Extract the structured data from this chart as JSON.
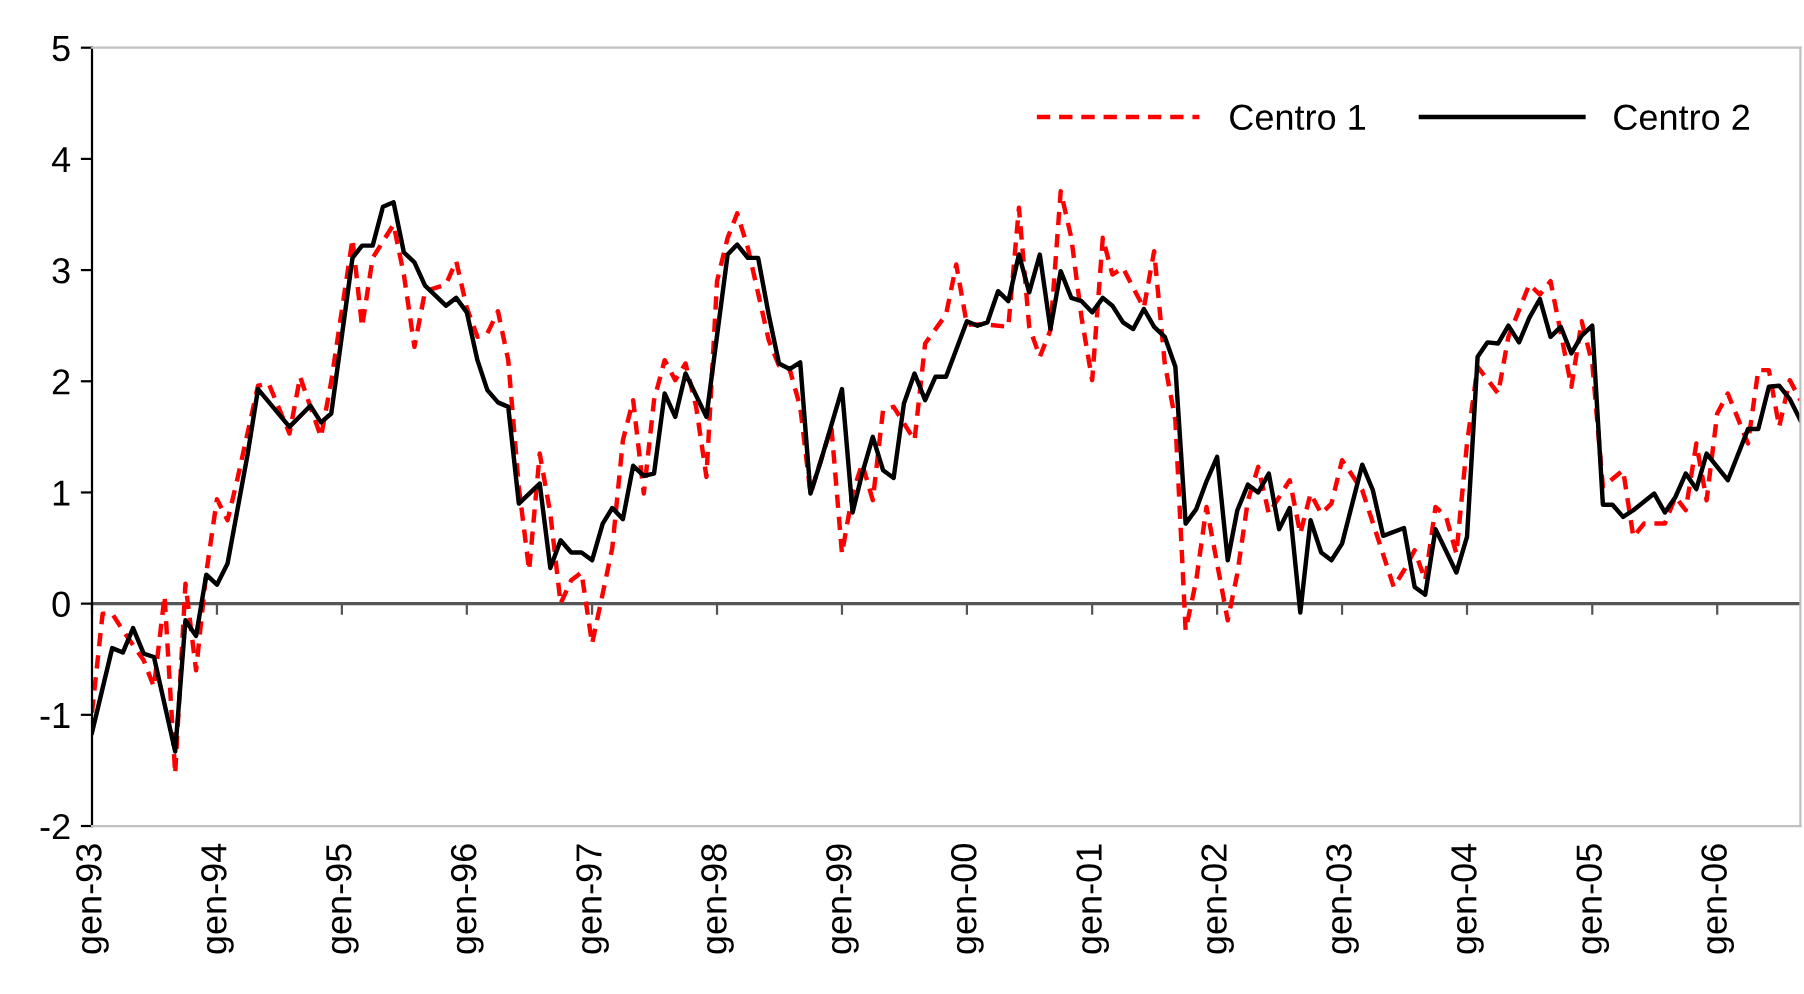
{
  "chart_data": {
    "type": "line",
    "xlim": [
      "1993-01",
      "2006-09"
    ],
    "xticks": [
      {
        "value": "1993-01",
        "label": "gen-93"
      },
      {
        "value": "1994-01",
        "label": "gen-94"
      },
      {
        "value": "1995-01",
        "label": "gen-95"
      },
      {
        "value": "1996-01",
        "label": "gen-96"
      },
      {
        "value": "1997-01",
        "label": "gen-97"
      },
      {
        "value": "1998-01",
        "label": "gen-98"
      },
      {
        "value": "1999-01",
        "label": "gen-99"
      },
      {
        "value": "2000-01",
        "label": "gen-00"
      },
      {
        "value": "2001-01",
        "label": "gen-01"
      },
      {
        "value": "2002-01",
        "label": "gen-02"
      },
      {
        "value": "2003-01",
        "label": "gen-03"
      },
      {
        "value": "2004-01",
        "label": "gen-04"
      },
      {
        "value": "2005-01",
        "label": "gen-05"
      },
      {
        "value": "2006-01",
        "label": "gen-06"
      }
    ],
    "ylim": [
      -2,
      5
    ],
    "yticks": [
      -2,
      -1,
      0,
      1,
      2,
      3,
      4,
      5
    ],
    "ref_lines": [
      {
        "axis": "y",
        "value": 0,
        "color": "#555555"
      }
    ],
    "legend": "top right",
    "marker": "none",
    "series": [
      {
        "name": "Centro 1",
        "color": "#ff0000",
        "line_style": "dashed",
        "x": [
          "1993-01",
          "1993-02",
          "1993-03",
          "1993-04",
          "1993-06",
          "1993-07",
          "1993-08",
          "1993-09",
          "1993-10",
          "1993-11",
          "1993-12",
          "1994-01",
          "1994-02",
          "1994-03",
          "1994-05",
          "1994-06",
          "1994-08",
          "1994-09",
          "1994-10",
          "1994-11",
          "1994-12",
          "1995-02",
          "1995-03",
          "1995-04",
          "1995-06",
          "1995-07",
          "1995-08",
          "1995-09",
          "1995-11",
          "1995-12",
          "1996-01",
          "1996-02",
          "1996-03",
          "1996-04",
          "1996-05",
          "1996-06",
          "1996-07",
          "1996-08",
          "1996-09",
          "1996-10",
          "1996-11",
          "1996-12",
          "1997-01",
          "1997-02",
          "1997-03",
          "1997-04",
          "1997-05",
          "1997-06",
          "1997-07",
          "1997-08",
          "1997-09",
          "1997-10",
          "1997-11",
          "1997-12",
          "1998-01",
          "1998-02",
          "1998-03",
          "1998-04",
          "1998-06",
          "1998-07",
          "1998-08",
          "1998-09",
          "1998-10",
          "1998-12",
          "1999-01",
          "1999-02",
          "1999-03",
          "1999-04",
          "1999-05",
          "1999-06",
          "1999-08",
          "1999-09",
          "1999-11",
          "1999-12",
          "2000-01",
          "2000-03",
          "2000-05",
          "2000-06",
          "2000-07",
          "2000-08",
          "2000-09",
          "2000-10",
          "2000-11",
          "2000-12",
          "2001-01",
          "2001-02",
          "2001-03",
          "2001-04",
          "2001-05",
          "2001-06",
          "2001-07",
          "2001-08",
          "2001-09",
          "2001-10",
          "2001-11",
          "2001-12",
          "2002-02",
          "2002-03",
          "2002-04",
          "2002-05",
          "2002-06",
          "2002-08",
          "2002-09",
          "2002-10",
          "2002-11",
          "2002-12",
          "2003-01",
          "2003-03",
          "2003-06",
          "2003-07",
          "2003-08",
          "2003-09",
          "2003-10",
          "2003-11",
          "2003-12",
          "2004-01",
          "2004-02",
          "2004-04",
          "2004-05",
          "2004-07",
          "2004-08",
          "2004-09",
          "2004-11",
          "2004-12",
          "2005-01",
          "2005-02",
          "2005-04",
          "2005-05",
          "2005-06",
          "2005-08",
          "2005-09",
          "2005-10",
          "2005-11",
          "2005-12",
          "2006-01",
          "2006-02",
          "2006-04",
          "2006-05",
          "2006-06",
          "2006-07",
          "2006-08",
          "2006-09"
        ],
        "values": [
          -0.98,
          -0.09,
          -0.09,
          -0.24,
          -0.51,
          -0.75,
          0.07,
          -1.53,
          0.18,
          -0.6,
          0.28,
          0.94,
          0.75,
          1.11,
          1.96,
          1.98,
          1.53,
          2.04,
          1.77,
          1.5,
          2.0,
          3.28,
          2.49,
          3.11,
          3.41,
          2.96,
          2.31,
          2.81,
          2.87,
          3.08,
          2.66,
          2.4,
          2.43,
          2.63,
          2.19,
          1.05,
          0.3,
          1.35,
          0.81,
          0.0,
          0.21,
          0.28,
          -0.36,
          0.09,
          0.5,
          1.47,
          1.83,
          0.99,
          1.83,
          2.19,
          2.01,
          2.16,
          1.77,
          1.14,
          2.9,
          3.29,
          3.51,
          3.2,
          2.37,
          2.14,
          2.11,
          1.77,
          0.99,
          1.59,
          0.45,
          0.99,
          1.26,
          0.93,
          1.74,
          1.77,
          1.47,
          2.34,
          2.6,
          3.05,
          2.51,
          2.51,
          2.49,
          3.56,
          2.49,
          2.22,
          2.46,
          3.71,
          3.29,
          2.57,
          2.01,
          3.29,
          2.96,
          3.02,
          2.84,
          2.66,
          3.17,
          2.16,
          1.65,
          -0.24,
          0.21,
          0.87,
          -0.15,
          0.27,
          0.93,
          1.23,
          0.81,
          1.11,
          0.63,
          0.99,
          0.81,
          0.9,
          1.29,
          1.02,
          0.15,
          0.3,
          0.48,
          0.21,
          0.87,
          0.78,
          0.45,
          1.44,
          2.13,
          1.89,
          2.4,
          2.87,
          2.78,
          2.9,
          1.95,
          2.54,
          2.16,
          1.05,
          1.2,
          0.6,
          0.72,
          0.72,
          0.96,
          0.84,
          1.44,
          0.93,
          1.71,
          1.89,
          1.44,
          2.1,
          2.1,
          1.59,
          2.01,
          1.83
        ]
      },
      {
        "name": "Centro 2",
        "color": "#000000",
        "line_style": "solid",
        "x": [
          "1993-01",
          "1993-03",
          "1993-04",
          "1993-05",
          "1993-06",
          "1993-07",
          "1993-09",
          "1993-10",
          "1993-11",
          "1993-12",
          "1994-01",
          "1994-02",
          "1994-04",
          "1994-05",
          "1994-08",
          "1994-10",
          "1994-11",
          "1994-12",
          "1995-02",
          "1995-03",
          "1995-04",
          "1995-05",
          "1995-06",
          "1995-07",
          "1995-08",
          "1995-09",
          "1995-11",
          "1995-12",
          "1996-01",
          "1996-02",
          "1996-03",
          "1996-04",
          "1996-05",
          "1996-06",
          "1996-08",
          "1996-09",
          "1996-10",
          "1996-11",
          "1996-12",
          "1997-01",
          "1997-02",
          "1997-03",
          "1997-04",
          "1997-05",
          "1997-06",
          "1997-07",
          "1997-08",
          "1997-09",
          "1997-10",
          "1997-12",
          "1998-02",
          "1998-03",
          "1998-04",
          "1998-05",
          "1998-06",
          "1998-07",
          "1998-08",
          "1998-09",
          "1998-10",
          "1998-11",
          "1999-01",
          "1999-02",
          "1999-03",
          "1999-04",
          "1999-05",
          "1999-06",
          "1999-07",
          "1999-08",
          "1999-09",
          "1999-10",
          "1999-11",
          "2000-01",
          "2000-02",
          "2000-03",
          "2000-04",
          "2000-05",
          "2000-06",
          "2000-07",
          "2000-08",
          "2000-09",
          "2000-10",
          "2000-11",
          "2000-12",
          "2001-01",
          "2001-02",
          "2001-03",
          "2001-04",
          "2001-05",
          "2001-06",
          "2001-07",
          "2001-08",
          "2001-09",
          "2001-10",
          "2001-11",
          "2001-12",
          "2002-01",
          "2002-02",
          "2002-03",
          "2002-04",
          "2002-05",
          "2002-06",
          "2002-07",
          "2002-08",
          "2002-09",
          "2002-10",
          "2002-11",
          "2002-12",
          "2003-01",
          "2003-03",
          "2003-04",
          "2003-05",
          "2003-07",
          "2003-08",
          "2003-09",
          "2003-10",
          "2003-12",
          "2004-01",
          "2004-02",
          "2004-03",
          "2004-04",
          "2004-05",
          "2004-06",
          "2004-07",
          "2004-08",
          "2004-09",
          "2004-10",
          "2004-11",
          "2004-12",
          "2005-01",
          "2005-02",
          "2005-03",
          "2005-04",
          "2005-05",
          "2005-07",
          "2005-08",
          "2005-09",
          "2005-10",
          "2005-11",
          "2005-12",
          "2006-02",
          "2006-04",
          "2006-05",
          "2006-06",
          "2006-07",
          "2006-08",
          "2006-09"
        ],
        "values": [
          -1.16,
          -0.4,
          -0.44,
          -0.22,
          -0.45,
          -0.48,
          -1.33,
          -0.15,
          -0.29,
          0.26,
          0.17,
          0.36,
          1.35,
          1.93,
          1.59,
          1.78,
          1.63,
          1.71,
          3.11,
          3.22,
          3.22,
          3.57,
          3.61,
          3.16,
          3.07,
          2.86,
          2.68,
          2.75,
          2.62,
          2.19,
          1.92,
          1.81,
          1.77,
          0.9,
          1.08,
          0.32,
          0.57,
          0.46,
          0.46,
          0.39,
          0.72,
          0.86,
          0.76,
          1.24,
          1.15,
          1.17,
          1.89,
          1.68,
          2.07,
          1.68,
          3.14,
          3.23,
          3.11,
          3.11,
          2.6,
          2.16,
          2.11,
          2.17,
          0.99,
          1.29,
          1.93,
          0.82,
          1.17,
          1.5,
          1.2,
          1.13,
          1.8,
          2.07,
          1.83,
          2.04,
          2.04,
          2.54,
          2.5,
          2.53,
          2.81,
          2.72,
          3.14,
          2.8,
          3.14,
          2.47,
          2.99,
          2.75,
          2.72,
          2.62,
          2.75,
          2.68,
          2.53,
          2.47,
          2.65,
          2.49,
          2.4,
          2.13,
          0.72,
          0.85,
          1.1,
          1.32,
          0.39,
          0.84,
          1.07,
          1.0,
          1.17,
          0.67,
          0.86,
          -0.08,
          0.75,
          0.46,
          0.39,
          0.54,
          1.25,
          1.02,
          0.61,
          0.68,
          0.15,
          0.08,
          0.67,
          0.28,
          0.6,
          2.22,
          2.35,
          2.34,
          2.5,
          2.35,
          2.57,
          2.74,
          2.4,
          2.49,
          2.25,
          2.41,
          2.5,
          0.89,
          0.89,
          0.78,
          0.84,
          0.99,
          0.82,
          0.96,
          1.17,
          1.03,
          1.35,
          1.11,
          1.57,
          1.57,
          1.95,
          1.96,
          1.84,
          1.65
        ]
      }
    ]
  }
}
